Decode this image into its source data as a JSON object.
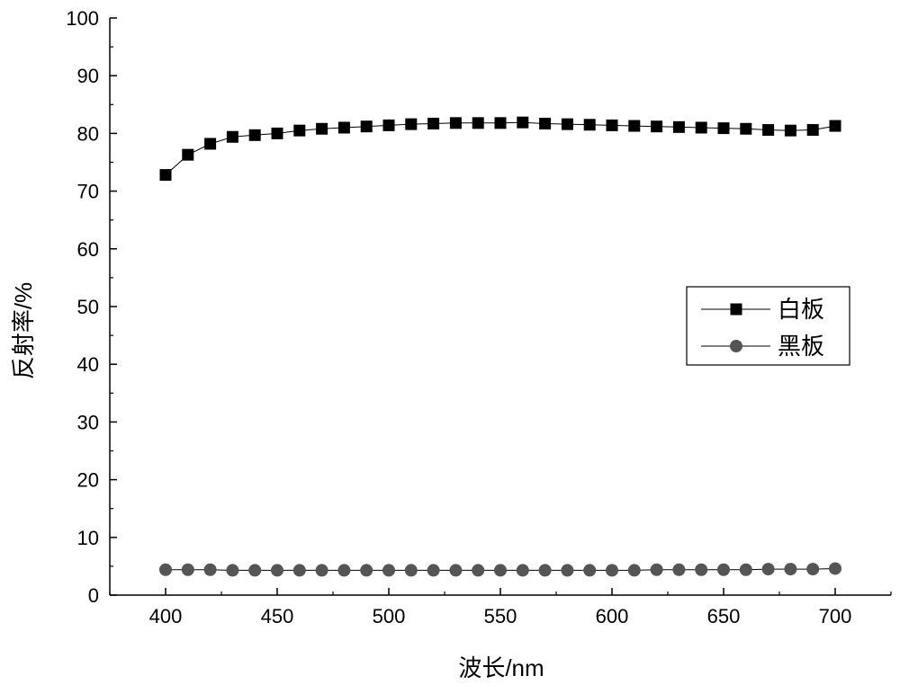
{
  "chart_data": {
    "type": "line",
    "title": "",
    "xlabel": "波长/nm",
    "ylabel": "反射率/%",
    "xlim": [
      375,
      725
    ],
    "ylim": [
      0,
      100
    ],
    "xticks": [
      400,
      450,
      500,
      550,
      600,
      650,
      700
    ],
    "yticks": [
      0,
      10,
      20,
      30,
      40,
      50,
      60,
      70,
      80,
      90,
      100
    ],
    "grid": false,
    "legend_position": "right-middle",
    "x": [
      400,
      410,
      420,
      430,
      440,
      450,
      460,
      470,
      480,
      490,
      500,
      510,
      520,
      530,
      540,
      550,
      560,
      570,
      580,
      590,
      600,
      610,
      620,
      630,
      640,
      650,
      660,
      670,
      680,
      690,
      700
    ],
    "series": [
      {
        "name": "白板",
        "marker": "square",
        "color": "#000000",
        "values": [
          72.8,
          76.3,
          78.2,
          79.4,
          79.7,
          80.0,
          80.5,
          80.8,
          81.0,
          81.2,
          81.4,
          81.6,
          81.7,
          81.8,
          81.8,
          81.8,
          81.9,
          81.7,
          81.6,
          81.5,
          81.4,
          81.3,
          81.2,
          81.1,
          81.0,
          80.9,
          80.8,
          80.6,
          80.5,
          80.6,
          81.3
        ]
      },
      {
        "name": "黑板",
        "marker": "circle",
        "color": "#555555",
        "values": [
          4.4,
          4.4,
          4.4,
          4.3,
          4.3,
          4.3,
          4.3,
          4.3,
          4.3,
          4.3,
          4.3,
          4.3,
          4.3,
          4.3,
          4.3,
          4.3,
          4.3,
          4.3,
          4.3,
          4.3,
          4.3,
          4.3,
          4.4,
          4.4,
          4.4,
          4.4,
          4.4,
          4.5,
          4.5,
          4.5,
          4.6
        ]
      }
    ]
  }
}
